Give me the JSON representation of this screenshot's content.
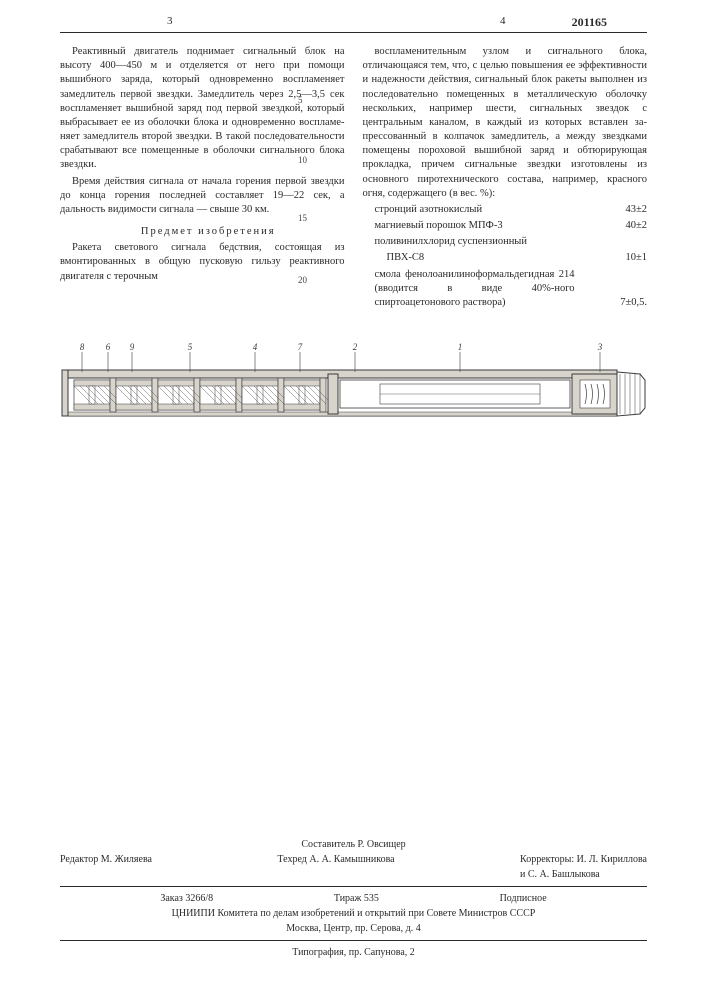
{
  "header": {
    "left_page_num": "3",
    "right_page_num": "4",
    "patent_number": "201165"
  },
  "left_col": {
    "p1": "Реактивный двигатель поднимает сигналь­ный блок на высоту 400—450 м и отделяется от него при помощи вышибного заряда, кото­рый одновременно воспламеняет замедли­тель первой звездки. Замедлитель через 2,5—3,5 сек воспламеняет вышибной заряд под первой звездкой, который выбрасывает ее из оболочки блока и одновременно воспламе­няет замедлитель второй звездки. В такой последовательности срабатывают все поме­щенные в оболочки сигнального блока звездки.",
    "p2": "Время действия сигнала от начала горения первой звездки до конца горения последней составляет 19—22 сек, а дальность види­мости сигнала — свыше 30 км.",
    "section_title": "Предмет изобретения",
    "p3": "Ракета светового сигнала бедствия, состоя­щая из вмонтированных в общую пусковую гильзу реактивного двигателя с терочным"
  },
  "line_numbers": {
    "n5": "5",
    "n10": "10",
    "n15": "15",
    "n20": "20"
  },
  "right_col": {
    "p1": "воспламенительным узлом и сигнального блока, отличающаяся тем, что, с целью по­вышения ее эффективности и надежности действия, сигнальный блок ракеты выполнен из последовательно помещенных в металли­ческую оболочку нескольких, например шести, сигнальных звездок с центральным каналом, в каждый из которых вставлен за­прессованный в колпачок замедлитель, а между звездками помещены пороховой вы­шибной заряд и обтюрирующая прокладка, причем сигнальные звездки изготовлены из основного пиротехнического состава, напри­мер, красного огня, содержащего (в вес. %):",
    "comp1_name": "стронций азотнокислый",
    "comp1_val": "43±2",
    "comp2_name": "магниевый порошок МПФ-3",
    "comp2_val": "40±2",
    "comp3_name": "поливинилхлорид суспензионный",
    "comp3_sub": "ПВХ-С8",
    "comp3_val": "10±1",
    "comp4_name": "смола фенолоанилиноформальде­гидная 214 (вводится в виде 40%-ного спиртоацетонового раствора)",
    "comp4_val": "7±0,5."
  },
  "diagram": {
    "labels": [
      "8",
      "6",
      "9",
      "5",
      "4",
      "7",
      "2",
      "1",
      "3"
    ],
    "body_fill": "#ffffff",
    "hatch_fill": "#d8d4cc",
    "line_color": "#3a3a3a",
    "line_width": 1,
    "label_fontsize": 9
  },
  "footer": {
    "compiler": "Составитель Р. Овсищер",
    "editor": "Редактор М. Жиляева",
    "techred": "Техред А. А. Камышникова",
    "correctors": "Корректоры: И. Л. Кириллова\nи С. А. Башлыкова",
    "order": "Заказ 3266/8",
    "tirage": "Тираж 535",
    "subscription": "Подписное",
    "org": "ЦНИИПИ Комитета по делам изобретений и открытий при Совете Министров СССР",
    "address": "Москва, Центр, пр. Серова, д. 4",
    "typography": "Типография, пр. Сапунова, 2"
  }
}
